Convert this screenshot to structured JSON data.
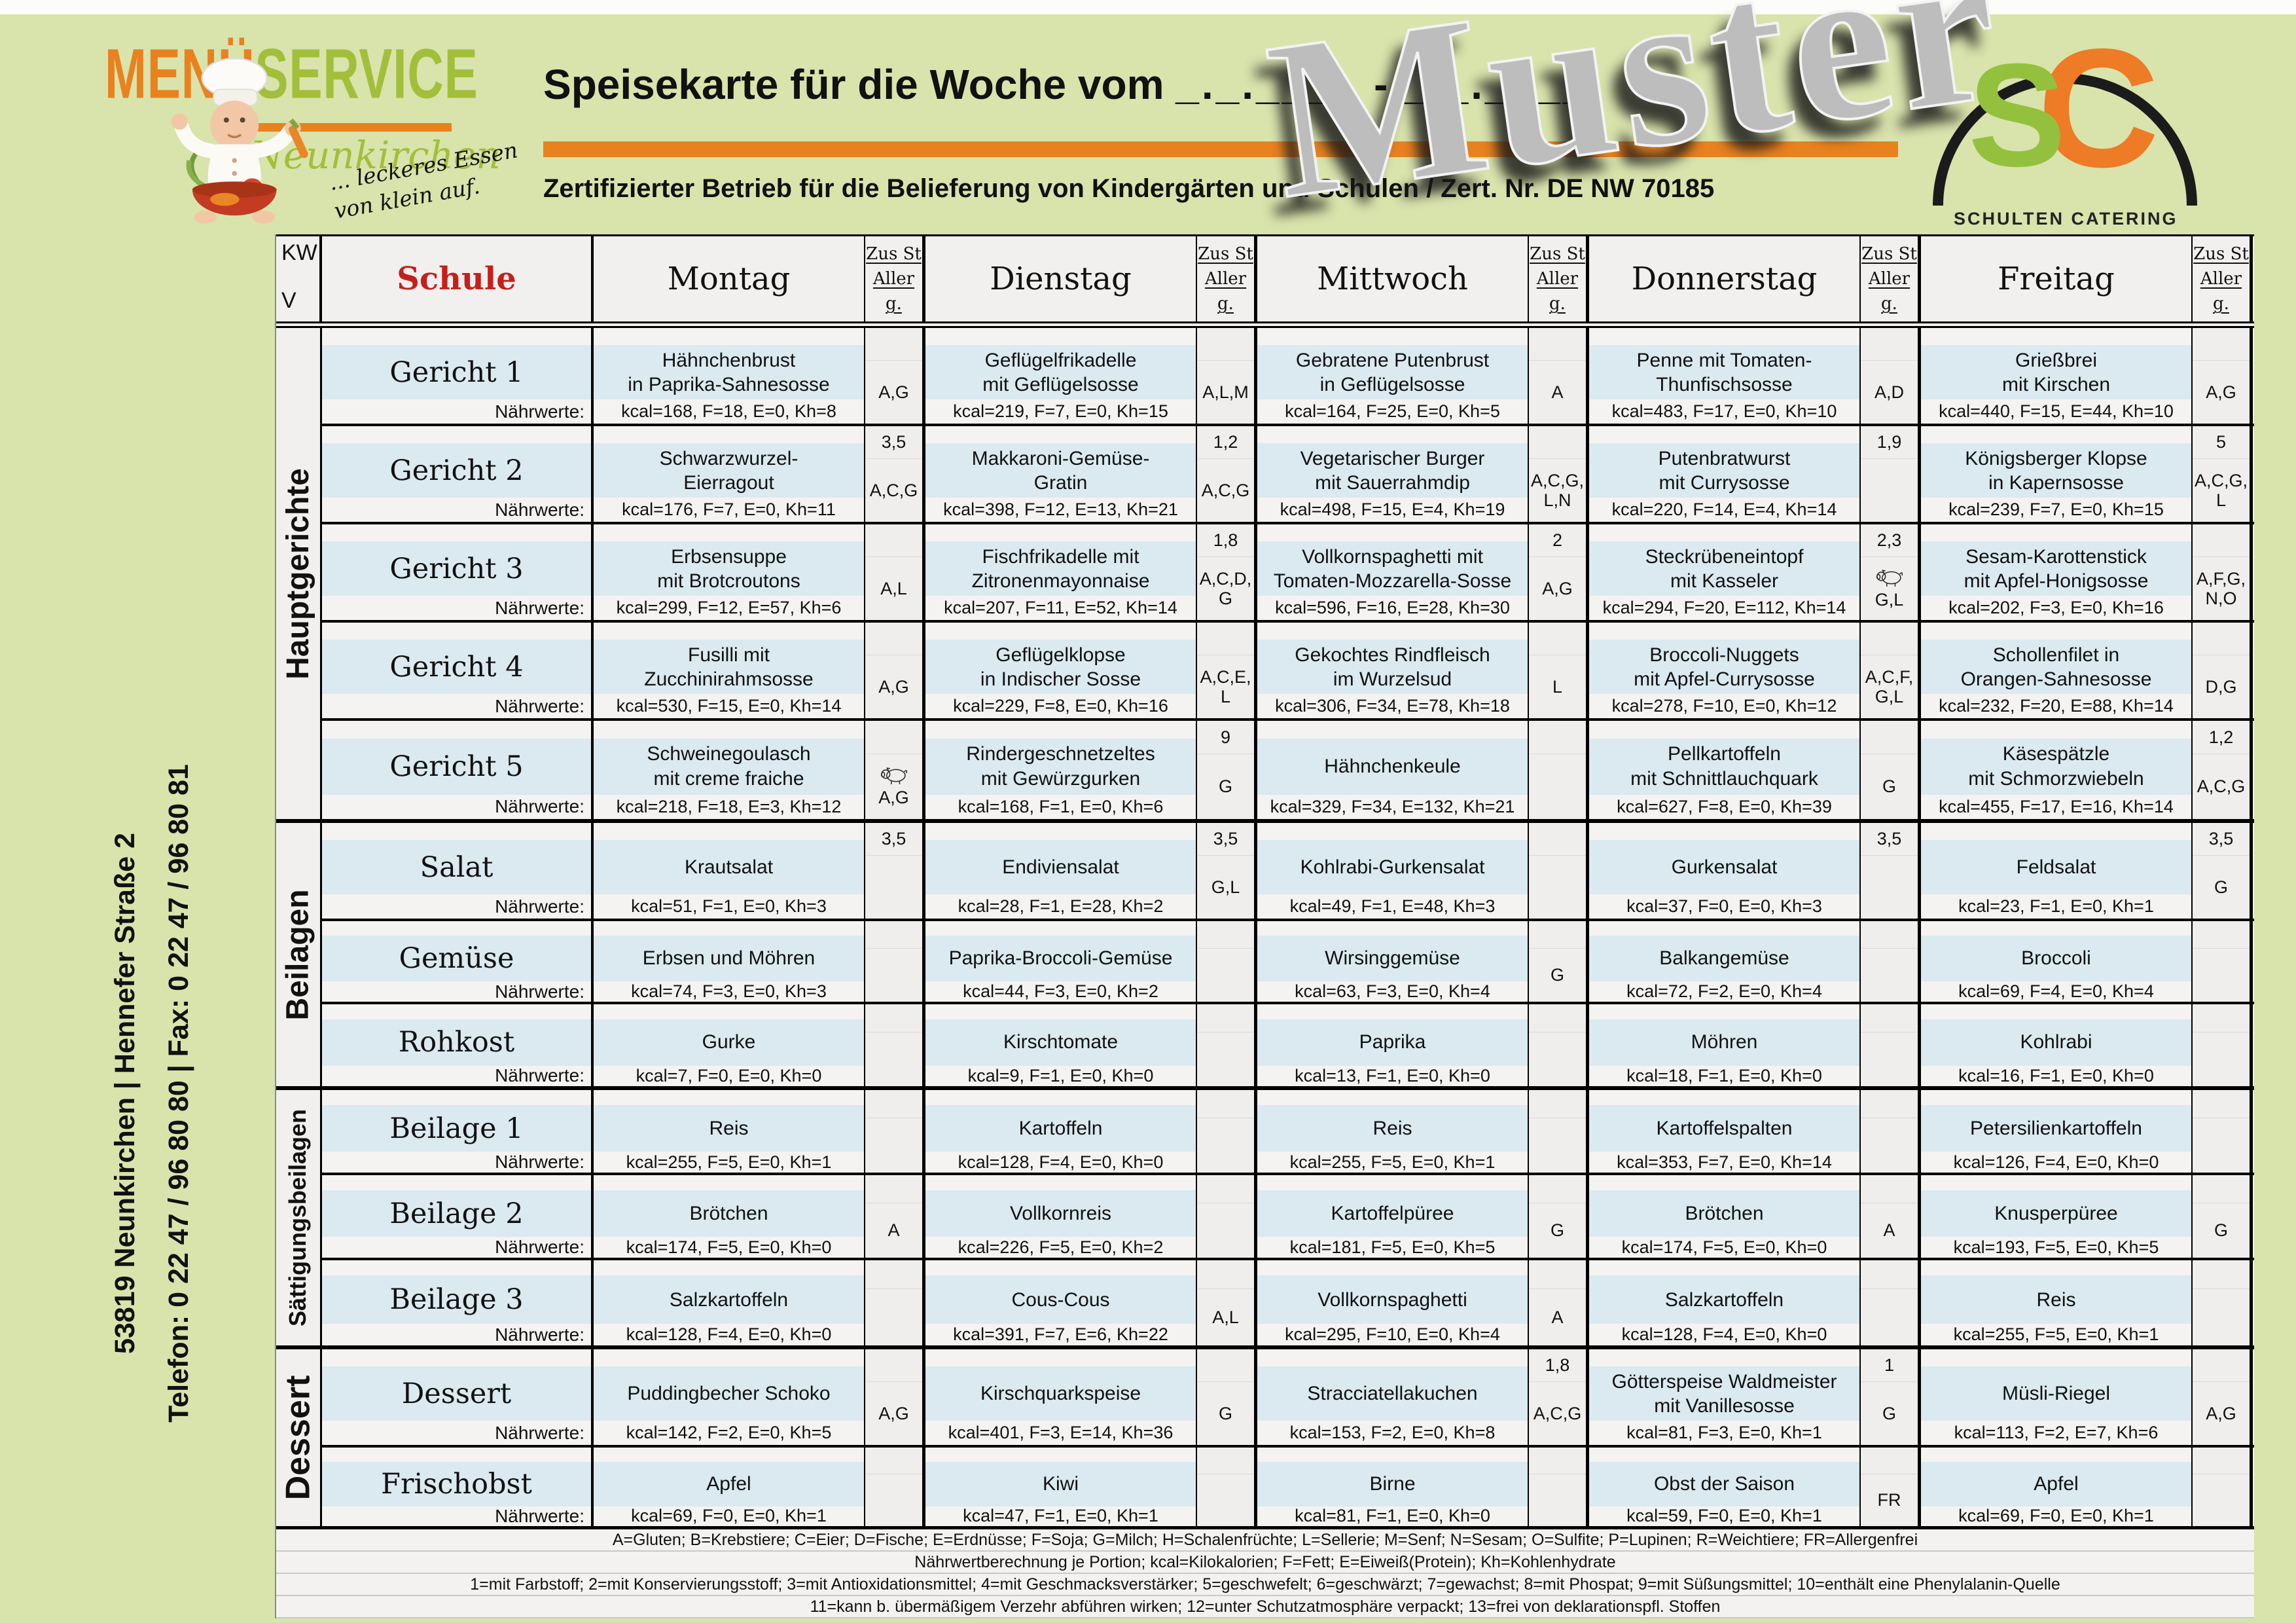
{
  "header": {
    "brand_menu": "MENÜ",
    "brand_service": "SERVICE",
    "brand_city": "Neunkirchen",
    "brand_tagline": "... leckeres Essen\nvon klein auf.",
    "title": "Speisekarte für die Woche vom",
    "title_dates": "_._.____ - _._.____",
    "subtitle": "Zertifizierter Betrieb für die Belieferung von Kindergärten und Schulen / Zert. Nr. DE NW 70185",
    "logo_letter_s": "S",
    "logo_letter_c": "C",
    "logo_caption": "SCHULTEN CATERING"
  },
  "watermark": "Muster",
  "left_info": {
    "line1": "53819 Neunkirchen | Hennefer Straße 2",
    "line2": "Telefon: 0 22 47 / 96 80 80 | Fax: 0 22 47 / 96 80 81"
  },
  "colors": {
    "page_background": "#d9e3ac",
    "cell_background": "#f2f0ee",
    "dish_band": "#dbe9f0",
    "brand_orange": "#e8821e",
    "brand_green": "#a2bf3a",
    "schule_red": "#c5201c"
  },
  "table": {
    "corner": {
      "top": "KW",
      "bottom": "V"
    },
    "category_header": "Schule",
    "days": [
      "Montag",
      "Dienstag",
      "Mittwoch",
      "Donnerstag",
      "Freitag"
    ],
    "allerg_header": [
      "Zus St",
      "Aller",
      "g."
    ],
    "naehrwerte_label": "Nährwerte:",
    "sections": [
      {
        "label": "Hauptgerichte",
        "rows": [
          {
            "category": "Gericht 1",
            "cells": [
              {
                "line1": "Hähnchenbrust",
                "line2": "in Paprika-Sahnesosse",
                "kcal": "kcal=168, F=18, E=0, Kh=8",
                "zus": "",
                "allerg": "A,G"
              },
              {
                "line1": "Geflügelfrikadelle",
                "line2": "mit Geflügelsosse",
                "kcal": "kcal=219, F=7, E=0, Kh=15",
                "zus": "",
                "allerg": "A,L,M"
              },
              {
                "line1": "Gebratene Putenbrust",
                "line2": "in Geflügelsosse",
                "kcal": "kcal=164, F=25, E=0, Kh=5",
                "zus": "",
                "allerg": "A"
              },
              {
                "line1": "Penne mit Tomaten-",
                "line2": "Thunfischsosse",
                "kcal": "kcal=483, F=17, E=0, Kh=10",
                "zus": "",
                "allerg": "A,D"
              },
              {
                "line1": "Grießbrei",
                "line2": "mit Kirschen",
                "kcal": "kcal=440, F=15, E=44, Kh=10",
                "zus": "",
                "allerg": "A,G"
              }
            ]
          },
          {
            "category": "Gericht 2",
            "cells": [
              {
                "line1": "Schwarzwurzel-",
                "line2": "Eierragout",
                "kcal": "kcal=176, F=7, E=0, Kh=11",
                "zus": "3,5",
                "allerg": "A,C,G"
              },
              {
                "line1": "Makkaroni-Gemüse-",
                "line2": "Gratin",
                "kcal": "kcal=398, F=12, E=13, Kh=21",
                "zus": "1,2",
                "allerg": "A,C,G"
              },
              {
                "line1": "Vegetarischer Burger",
                "line2": "mit Sauerrahmdip",
                "kcal": "kcal=498, F=15, E=4, Kh=19",
                "zus": "",
                "allerg": "A,C,G, L,N"
              },
              {
                "line1": "Putenbratwurst",
                "line2": "mit Currysosse",
                "kcal": "kcal=220, F=14, E=4, Kh=14",
                "zus": "1,9",
                "allerg": ""
              },
              {
                "line1": "Königsberger Klopse",
                "line2": "in Kapernsosse",
                "kcal": "kcal=239, F=7, E=0, Kh=15",
                "zus": "5",
                "allerg": "A,C,G, L"
              }
            ]
          },
          {
            "category": "Gericht 3",
            "cells": [
              {
                "line1": "Erbsensuppe",
                "line2": "mit Brotcroutons",
                "kcal": "kcal=299, F=12, E=57, Kh=6",
                "zus": "",
                "allerg": "A,L"
              },
              {
                "line1": "Fischfrikadelle mit",
                "line2": "Zitronenmayonnaise",
                "kcal": "kcal=207, F=11, E=52, Kh=14",
                "zus": "1,8",
                "allerg": "A,C,D, G"
              },
              {
                "line1": "Vollkornspaghetti mit",
                "line2": "Tomaten-Mozzarella-Sosse",
                "kcal": "kcal=596, F=16, E=28, Kh=30",
                "zus": "2",
                "allerg": "A,G"
              },
              {
                "line1": "Steckrübeneintopf",
                "line2": "mit Kasseler",
                "kcal": "kcal=294, F=20, E=112, Kh=14",
                "zus": "2,3",
                "allerg": "G,L",
                "pork": true
              },
              {
                "line1": "Sesam-Karottenstick",
                "line2": "mit Apfel-Honigsosse",
                "kcal": "kcal=202, F=3, E=0, Kh=16",
                "zus": "",
                "allerg": "A,F,G, N,O"
              }
            ]
          },
          {
            "category": "Gericht 4",
            "cells": [
              {
                "line1": "Fusilli mit",
                "line2": "Zucchinirahmsosse",
                "kcal": "kcal=530, F=15, E=0, Kh=14",
                "zus": "",
                "allerg": "A,G"
              },
              {
                "line1": "Geflügelklopse",
                "line2": "in Indischer Sosse",
                "kcal": "kcal=229, F=8, E=0, Kh=16",
                "zus": "",
                "allerg": "A,C,E, L"
              },
              {
                "line1": "Gekochtes Rindfleisch",
                "line2": "im Wurzelsud",
                "kcal": "kcal=306, F=34, E=78, Kh=18",
                "zus": "",
                "allerg": "L"
              },
              {
                "line1": "Broccoli-Nuggets",
                "line2": "mit Apfel-Currysosse",
                "kcal": "kcal=278, F=10, E=0, Kh=12",
                "zus": "",
                "allerg": "A,C,F, G,L"
              },
              {
                "line1": "Schollenfilet in",
                "line2": "Orangen-Sahnesosse",
                "kcal": "kcal=232, F=20, E=88, Kh=14",
                "zus": "",
                "allerg": "D,G"
              }
            ]
          },
          {
            "category": "Gericht 5",
            "cells": [
              {
                "line1": "Schweinegoulasch",
                "line2": "mit creme fraiche",
                "kcal": "kcal=218, F=18, E=3, Kh=12",
                "zus": "",
                "allerg": "A,G",
                "pork": true
              },
              {
                "line1": "Rindergeschnetzeltes",
                "line2": "mit Gewürzgurken",
                "kcal": "kcal=168, F=1, E=0, Kh=6",
                "zus": "9",
                "allerg": "G"
              },
              {
                "line1": "Hähnchenkeule",
                "line2": "",
                "kcal": "kcal=329, F=34, E=132, Kh=21",
                "zus": "",
                "allerg": ""
              },
              {
                "line1": "Pellkartoffeln",
                "line2": "mit Schnittlauchquark",
                "kcal": "kcal=627, F=8, E=0, Kh=39",
                "zus": "",
                "allerg": "G"
              },
              {
                "line1": "Käsespätzle",
                "line2": "mit Schmorzwiebeln",
                "kcal": "kcal=455, F=17, E=16, Kh=14",
                "zus": "1,2",
                "allerg": "A,C,G"
              }
            ]
          }
        ]
      },
      {
        "label": "Beilagen",
        "rows": [
          {
            "category": "Salat",
            "cells": [
              {
                "line1": "Krautsalat",
                "line2": "",
                "kcal": "kcal=51, F=1, E=0, Kh=3",
                "zus": "3,5",
                "allerg": ""
              },
              {
                "line1": "Endiviensalat",
                "line2": "",
                "kcal": "kcal=28, F=1, E=28, Kh=2",
                "zus": "3,5",
                "allerg": "G,L"
              },
              {
                "line1": "Kohlrabi-Gurkensalat",
                "line2": "",
                "kcal": "kcal=49, F=1, E=48, Kh=3",
                "zus": "",
                "allerg": ""
              },
              {
                "line1": "Gurkensalat",
                "line2": "",
                "kcal": "kcal=37, F=0, E=0, Kh=3",
                "zus": "3,5",
                "allerg": ""
              },
              {
                "line1": "Feldsalat",
                "line2": "",
                "kcal": "kcal=23, F=1, E=0, Kh=1",
                "zus": "3,5",
                "allerg": "G"
              }
            ]
          },
          {
            "category": "Gemüse",
            "cells": [
              {
                "line1": "Erbsen und Möhren",
                "line2": "",
                "kcal": "kcal=74, F=3, E=0, Kh=3",
                "zus": "",
                "allerg": ""
              },
              {
                "line1": "Paprika-Broccoli-Gemüse",
                "line2": "",
                "kcal": "kcal=44, F=3, E=0, Kh=2",
                "zus": "",
                "allerg": ""
              },
              {
                "line1": "Wirsinggemüse",
                "line2": "",
                "kcal": "kcal=63, F=3, E=0, Kh=4",
                "zus": "",
                "allerg": "G"
              },
              {
                "line1": "Balkangemüse",
                "line2": "",
                "kcal": "kcal=72, F=2, E=0, Kh=4",
                "zus": "",
                "allerg": ""
              },
              {
                "line1": "Broccoli",
                "line2": "",
                "kcal": "kcal=69, F=4, E=0, Kh=4",
                "zus": "",
                "allerg": ""
              }
            ]
          },
          {
            "category": "Rohkost",
            "cells": [
              {
                "line1": "Gurke",
                "line2": "",
                "kcal": "kcal=7, F=0, E=0, Kh=0",
                "zus": "",
                "allerg": ""
              },
              {
                "line1": "Kirschtomate",
                "line2": "",
                "kcal": "kcal=9, F=1, E=0, Kh=0",
                "zus": "",
                "allerg": ""
              },
              {
                "line1": "Paprika",
                "line2": "",
                "kcal": "kcal=13, F=1, E=0, Kh=0",
                "zus": "",
                "allerg": ""
              },
              {
                "line1": "Möhren",
                "line2": "",
                "kcal": "kcal=18, F=1, E=0, Kh=0",
                "zus": "",
                "allerg": ""
              },
              {
                "line1": "Kohlrabi",
                "line2": "",
                "kcal": "kcal=16, F=1, E=0, Kh=0",
                "zus": "",
                "allerg": ""
              }
            ]
          }
        ]
      },
      {
        "label": "Sättigungsbeilagen",
        "rows": [
          {
            "category": "Beilage 1",
            "cells": [
              {
                "line1": "Reis",
                "line2": "",
                "kcal": "kcal=255, F=5, E=0, Kh=1",
                "zus": "",
                "allerg": ""
              },
              {
                "line1": "Kartoffeln",
                "line2": "",
                "kcal": "kcal=128, F=4, E=0, Kh=0",
                "zus": "",
                "allerg": ""
              },
              {
                "line1": "Reis",
                "line2": "",
                "kcal": "kcal=255, F=5, E=0, Kh=1",
                "zus": "",
                "allerg": ""
              },
              {
                "line1": "Kartoffelspalten",
                "line2": "",
                "kcal": "kcal=353, F=7, E=0, Kh=14",
                "zus": "",
                "allerg": ""
              },
              {
                "line1": "Petersilienkartoffeln",
                "line2": "",
                "kcal": "kcal=126, F=4, E=0, Kh=0",
                "zus": "",
                "allerg": ""
              }
            ]
          },
          {
            "category": "Beilage 2",
            "cells": [
              {
                "line1": "Brötchen",
                "line2": "",
                "kcal": "kcal=174, F=5, E=0, Kh=0",
                "zus": "",
                "allerg": "A"
              },
              {
                "line1": "Vollkornreis",
                "line2": "",
                "kcal": "kcal=226, F=5, E=0, Kh=2",
                "zus": "",
                "allerg": ""
              },
              {
                "line1": "Kartoffelpüree",
                "line2": "",
                "kcal": "kcal=181, F=5, E=0, Kh=5",
                "zus": "",
                "allerg": "G"
              },
              {
                "line1": "Brötchen",
                "line2": "",
                "kcal": "kcal=174, F=5, E=0, Kh=0",
                "zus": "",
                "allerg": "A"
              },
              {
                "line1": "Knusperpüree",
                "line2": "",
                "kcal": "kcal=193, F=5, E=0, Kh=5",
                "zus": "",
                "allerg": "G"
              }
            ]
          },
          {
            "category": "Beilage 3",
            "cells": [
              {
                "line1": "Salzkartoffeln",
                "line2": "",
                "kcal": "kcal=128, F=4, E=0, Kh=0",
                "zus": "",
                "allerg": ""
              },
              {
                "line1": "Cous-Cous",
                "line2": "",
                "kcal": "kcal=391, F=7, E=6, Kh=22",
                "zus": "",
                "allerg": "A,L"
              },
              {
                "line1": "Vollkornspaghetti",
                "line2": "",
                "kcal": "kcal=295, F=10, E=0, Kh=4",
                "zus": "",
                "allerg": "A"
              },
              {
                "line1": "Salzkartoffeln",
                "line2": "",
                "kcal": "kcal=128, F=4, E=0, Kh=0",
                "zus": "",
                "allerg": ""
              },
              {
                "line1": "Reis",
                "line2": "",
                "kcal": "kcal=255, F=5, E=0, Kh=1",
                "zus": "",
                "allerg": ""
              }
            ]
          }
        ]
      },
      {
        "label": "Dessert",
        "rows": [
          {
            "category": "Dessert",
            "cells": [
              {
                "line1": "Puddingbecher Schoko",
                "line2": "",
                "kcal": "kcal=142, F=2, E=0, Kh=5",
                "zus": "",
                "allerg": "A,G"
              },
              {
                "line1": "Kirschquarkspeise",
                "line2": "",
                "kcal": "kcal=401, F=3, E=14, Kh=36",
                "zus": "",
                "allerg": "G"
              },
              {
                "line1": "Stracciatellakuchen",
                "line2": "",
                "kcal": "kcal=153, F=2, E=0, Kh=8",
                "zus": "1,8",
                "allerg": "A,C,G"
              },
              {
                "line1": "Götterspeise Waldmeister",
                "line2": "mit Vanillesosse",
                "kcal": "kcal=81, F=3, E=0, Kh=1",
                "zus": "1",
                "allerg": "G"
              },
              {
                "line1": "Müsli-Riegel",
                "line2": "",
                "kcal": "kcal=113, F=2, E=7, Kh=6",
                "zus": "",
                "allerg": "A,G"
              }
            ]
          },
          {
            "category": "Frischobst",
            "cells": [
              {
                "line1": "Apfel",
                "line2": "",
                "kcal": "kcal=69, F=0, E=0, Kh=1",
                "zus": "",
                "allerg": ""
              },
              {
                "line1": "Kiwi",
                "line2": "",
                "kcal": "kcal=47, F=1, E=0, Kh=1",
                "zus": "",
                "allerg": ""
              },
              {
                "line1": "Birne",
                "line2": "",
                "kcal": "kcal=81, F=1, E=0, Kh=0",
                "zus": "",
                "allerg": ""
              },
              {
                "line1": "Obst der Saison",
                "line2": "",
                "kcal": "kcal=59, F=0, E=0, Kh=1",
                "zus": "",
                "allerg": "FR"
              },
              {
                "line1": "Apfel",
                "line2": "",
                "kcal": "kcal=69, F=0, E=0, Kh=1",
                "zus": "",
                "allerg": ""
              }
            ]
          }
        ]
      }
    ]
  },
  "footer": {
    "lines": [
      "A=Gluten; B=Krebstiere; C=Eier; D=Fische; E=Erdnüsse; F=Soja; G=Milch; H=Schalenfrüchte; L=Sellerie; M=Senf; N=Sesam; O=Sulfite; P=Lupinen; R=Weichtiere; FR=Allergenfrei",
      "Nährwertberechnung je Portion; kcal=Kilokalorien; F=Fett; E=Eiweiß(Protein); Kh=Kohlenhydrate",
      "1=mit Farbstoff; 2=mit Konservierungsstoff; 3=mit Antioxidationsmittel; 4=mit Geschmacksverstärker; 5=geschwefelt; 6=geschwärzt; 7=gewachst; 8=mit Phospat; 9=mit Süßungsmittel; 10=enthält eine Phenylalanin-Quelle",
      "11=kann b. übermäßigem Verzehr abführen wirken; 12=unter Schutzatmosphäre verpackt; 13=frei von deklarationspfl. Stoffen"
    ]
  }
}
